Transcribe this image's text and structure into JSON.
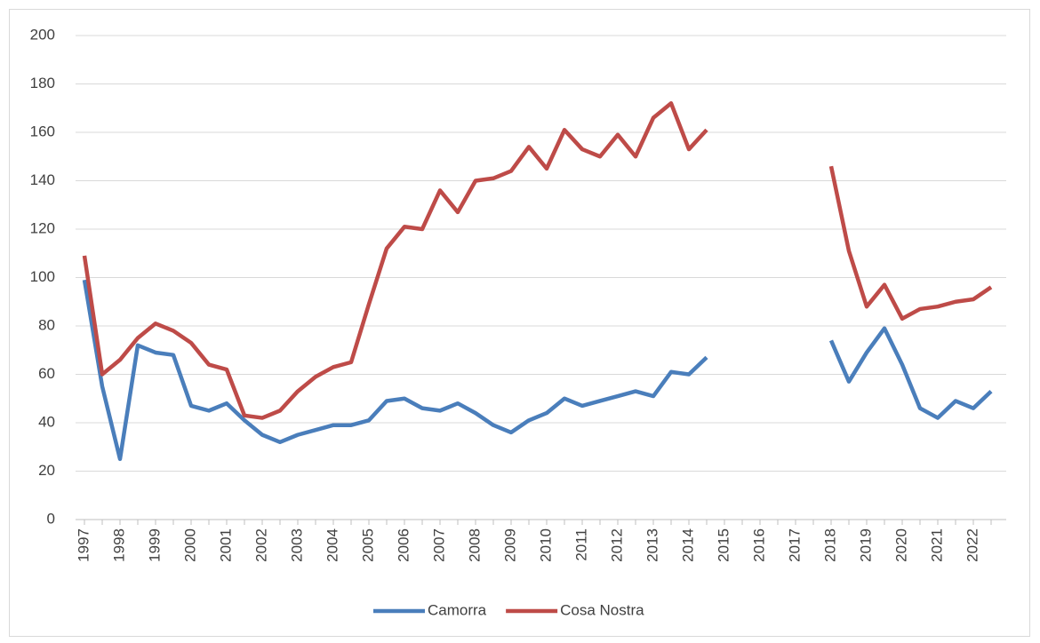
{
  "chart_data": {
    "type": "line",
    "categories": [
      "1997",
      null,
      "1998",
      null,
      "1999",
      null,
      "2000",
      null,
      "2001",
      null,
      "2002",
      null,
      "2003",
      null,
      "2004",
      null,
      "2005",
      null,
      "2006",
      null,
      "2007",
      null,
      "2008",
      null,
      "2009",
      null,
      "2010",
      null,
      "2011",
      null,
      "2012",
      null,
      "2013",
      null,
      "2014",
      null,
      "2015",
      null,
      "2016",
      null,
      "2017",
      null,
      "2018",
      null,
      "2019",
      null,
      "2020",
      null,
      "2021",
      null,
      "2022",
      null
    ],
    "series": [
      {
        "name": "Camorra",
        "color": "#4a7ebb",
        "values": [
          99,
          55,
          25,
          72,
          69,
          68,
          47,
          45,
          48,
          41,
          35,
          32,
          35,
          37,
          39,
          39,
          41,
          49,
          50,
          46,
          45,
          48,
          44,
          39,
          36,
          41,
          44,
          50,
          47,
          49,
          51,
          53,
          51,
          61,
          60,
          67,
          null,
          null,
          null,
          null,
          null,
          null,
          74,
          57,
          69,
          79,
          64,
          46,
          42,
          49,
          46,
          53
        ]
      },
      {
        "name": "Cosa Nostra",
        "color": "#be4b48",
        "values": [
          109,
          60,
          66,
          75,
          81,
          78,
          73,
          64,
          62,
          43,
          42,
          45,
          53,
          59,
          63,
          65,
          89,
          112,
          121,
          120,
          136,
          127,
          140,
          141,
          144,
          154,
          145,
          161,
          153,
          150,
          159,
          150,
          166,
          172,
          153,
          161,
          null,
          null,
          null,
          null,
          null,
          null,
          146,
          111,
          88,
          97,
          83,
          87,
          88,
          90,
          91,
          96
        ]
      }
    ],
    "ylim": [
      0,
      200
    ],
    "yticks": [
      0,
      20,
      40,
      60,
      80,
      100,
      120,
      140,
      160,
      180,
      200
    ],
    "grid": true,
    "legend": "bottom"
  }
}
